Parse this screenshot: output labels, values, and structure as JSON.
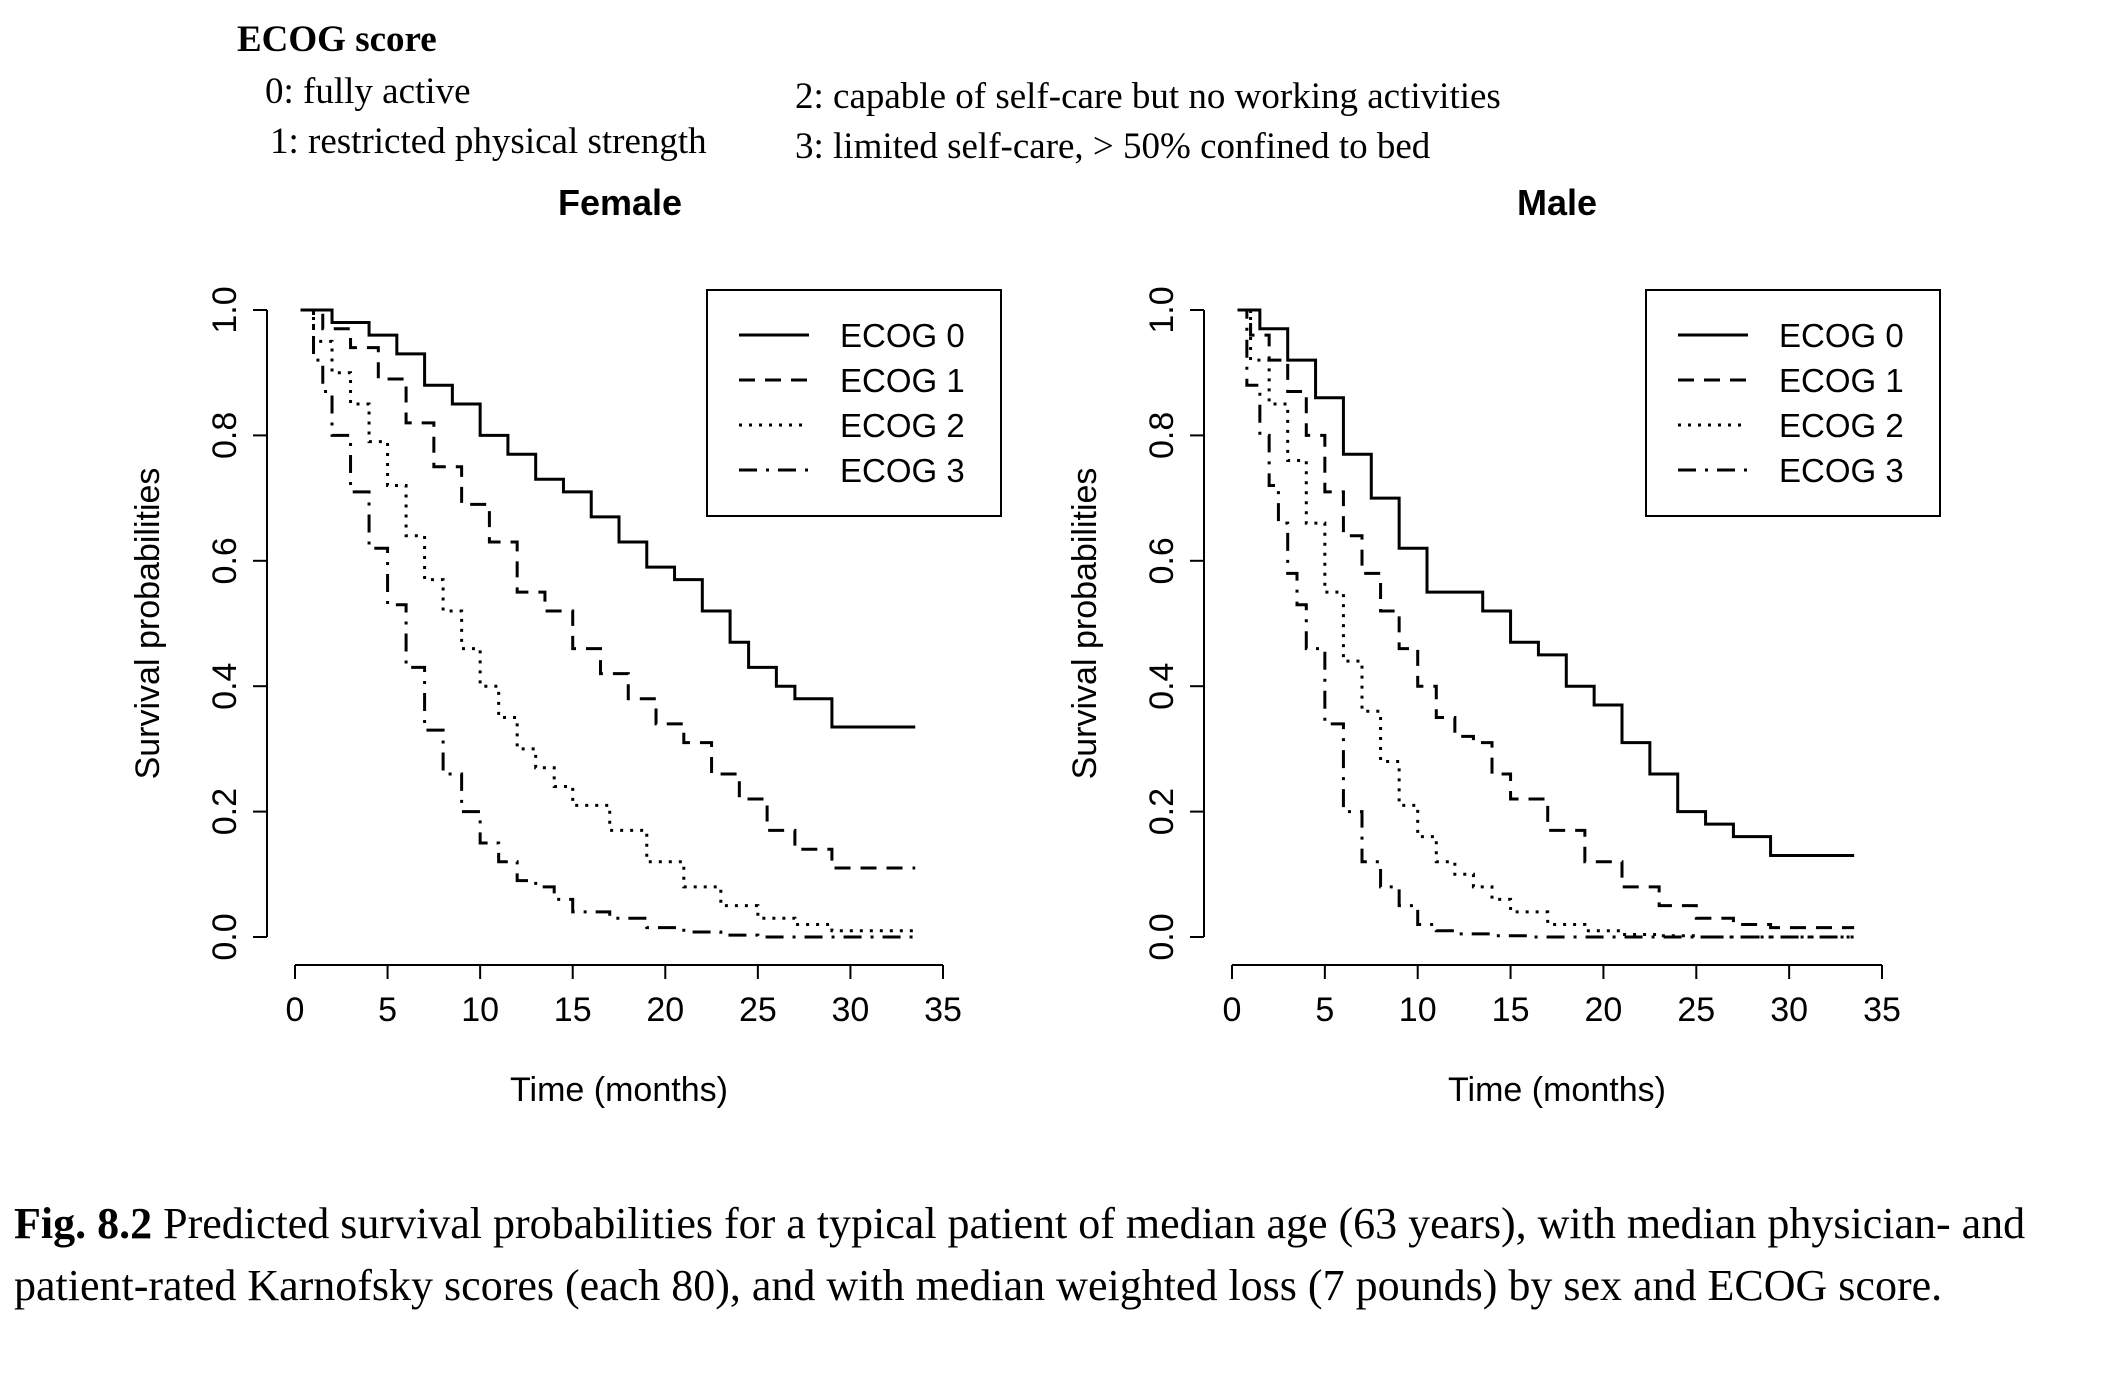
{
  "header": {
    "title": "ECOG score",
    "items": [
      "0: fully active",
      "1: restricted physical strength",
      "2: capable of self-care but no working activities",
      "3: limited self-care,  > 50% confined to bed"
    ]
  },
  "chart_data": [
    {
      "type": "line",
      "step": true,
      "title": "Female",
      "xlabel": "Time (months)",
      "ylabel": "Survival probabilities",
      "xlim": [
        0,
        35
      ],
      "ylim": [
        0,
        1
      ],
      "xticks": [
        0,
        5,
        10,
        15,
        20,
        25,
        30,
        35
      ],
      "yticks": [
        "0.0",
        "0.2",
        "0.4",
        "0.6",
        "0.8",
        "1.0"
      ],
      "legend_position": "top-right",
      "series": [
        {
          "name": "ECOG 0",
          "dash": "solid",
          "x": [
            0.3,
            2,
            4,
            5.5,
            7,
            8.5,
            10,
            11.5,
            13,
            14.5,
            16,
            17.5,
            19,
            20.5,
            22,
            23.5,
            24.5,
            26,
            27,
            29,
            33.5
          ],
          "y": [
            1.0,
            0.98,
            0.96,
            0.93,
            0.88,
            0.85,
            0.8,
            0.77,
            0.73,
            0.71,
            0.67,
            0.63,
            0.59,
            0.57,
            0.52,
            0.47,
            0.43,
            0.4,
            0.38,
            0.335,
            0.335
          ]
        },
        {
          "name": "ECOG 1",
          "dash": "dashed",
          "x": [
            0.3,
            1.5,
            3,
            4.5,
            6,
            7.5,
            9,
            10.5,
            12,
            13.5,
            15,
            16.5,
            18,
            19.5,
            21,
            22.5,
            24,
            25.5,
            27,
            29,
            33.5
          ],
          "y": [
            1.0,
            0.97,
            0.94,
            0.89,
            0.82,
            0.75,
            0.69,
            0.63,
            0.55,
            0.52,
            0.46,
            0.42,
            0.38,
            0.34,
            0.31,
            0.26,
            0.22,
            0.17,
            0.14,
            0.11,
            0.11
          ]
        },
        {
          "name": "ECOG 2",
          "dash": "dotted",
          "x": [
            0.3,
            1,
            2,
            3,
            4,
            5,
            6,
            7,
            8,
            9,
            10,
            11,
            12,
            13,
            14,
            15,
            17,
            19,
            21,
            23,
            25,
            27,
            29,
            31,
            33.5
          ],
          "y": [
            1.0,
            0.95,
            0.9,
            0.85,
            0.79,
            0.72,
            0.64,
            0.57,
            0.52,
            0.46,
            0.4,
            0.35,
            0.3,
            0.27,
            0.24,
            0.21,
            0.17,
            0.12,
            0.08,
            0.05,
            0.03,
            0.02,
            0.01,
            0.01,
            0.01
          ]
        },
        {
          "name": "ECOG 3",
          "dash": "dashdot",
          "x": [
            0.3,
            1,
            1.5,
            2,
            3,
            4,
            5,
            6,
            7,
            8,
            9,
            10,
            11,
            12,
            13,
            14,
            15,
            17,
            19,
            21,
            23,
            25,
            28,
            33.5
          ],
          "y": [
            1.0,
            0.92,
            0.87,
            0.8,
            0.71,
            0.62,
            0.53,
            0.43,
            0.33,
            0.26,
            0.2,
            0.15,
            0.12,
            0.09,
            0.08,
            0.06,
            0.04,
            0.03,
            0.015,
            0.008,
            0.003,
            0.0,
            0.0,
            0.0
          ]
        }
      ]
    },
    {
      "type": "line",
      "step": true,
      "title": "Male",
      "xlabel": "Time (months)",
      "ylabel": "Survival probabilities",
      "xlim": [
        0,
        35
      ],
      "ylim": [
        0,
        1
      ],
      "xticks": [
        0,
        5,
        10,
        15,
        20,
        25,
        30,
        35
      ],
      "yticks": [
        "0.0",
        "0.2",
        "0.4",
        "0.6",
        "0.8",
        "1.0"
      ],
      "legend_position": "top-right",
      "series": [
        {
          "name": "ECOG 0",
          "dash": "solid",
          "x": [
            0.3,
            1.5,
            3,
            4.5,
            6,
            7.5,
            9,
            10.5,
            12,
            13.5,
            15,
            16.5,
            18,
            19.5,
            21,
            22.5,
            24,
            25.5,
            27,
            29,
            33.5
          ],
          "y": [
            1.0,
            0.97,
            0.92,
            0.86,
            0.77,
            0.7,
            0.62,
            0.55,
            0.55,
            0.52,
            0.47,
            0.45,
            0.4,
            0.37,
            0.31,
            0.26,
            0.2,
            0.18,
            0.16,
            0.13,
            0.13
          ]
        },
        {
          "name": "ECOG 1",
          "dash": "dashed",
          "x": [
            0.3,
            1,
            2,
            3,
            4,
            5,
            6,
            7,
            8,
            9,
            10,
            11,
            12,
            13,
            14,
            15,
            17,
            19,
            21,
            23,
            25,
            27,
            29,
            31,
            33.5
          ],
          "y": [
            1.0,
            0.96,
            0.92,
            0.87,
            0.8,
            0.71,
            0.64,
            0.58,
            0.52,
            0.46,
            0.4,
            0.35,
            0.32,
            0.31,
            0.26,
            0.22,
            0.17,
            0.12,
            0.08,
            0.05,
            0.03,
            0.02,
            0.015,
            0.015,
            0.015
          ]
        },
        {
          "name": "ECOG 2",
          "dash": "dotted",
          "x": [
            0.3,
            1,
            2,
            3,
            4,
            5,
            6,
            7,
            8,
            9,
            10,
            11,
            12,
            13,
            14,
            15,
            17,
            19,
            21,
            23,
            25,
            28,
            33.5
          ],
          "y": [
            1.0,
            0.92,
            0.85,
            0.76,
            0.66,
            0.55,
            0.44,
            0.36,
            0.28,
            0.21,
            0.16,
            0.12,
            0.1,
            0.08,
            0.06,
            0.04,
            0.02,
            0.01,
            0.004,
            0.002,
            0.0,
            0.0,
            0.0
          ]
        },
        {
          "name": "ECOG 3",
          "dash": "dashdot",
          "x": [
            0.3,
            0.8,
            1.5,
            2,
            2.5,
            3,
            3.5,
            4,
            5,
            6,
            7,
            8,
            9,
            10,
            11,
            12,
            14,
            16,
            20,
            25,
            33.5
          ],
          "y": [
            1.0,
            0.88,
            0.8,
            0.72,
            0.66,
            0.58,
            0.53,
            0.46,
            0.34,
            0.2,
            0.12,
            0.08,
            0.05,
            0.02,
            0.01,
            0.005,
            0.002,
            0.0,
            0.0,
            0.0,
            0.0
          ]
        }
      ]
    }
  ],
  "caption": {
    "label": "Fig. 8.2",
    "text": "  Predicted survival probabilities for a typical patient of median age (63 years), with median physician- and patient-rated Karnofsky scores (each 80), and with median weighted loss (7 pounds) by sex and ECOG score."
  }
}
